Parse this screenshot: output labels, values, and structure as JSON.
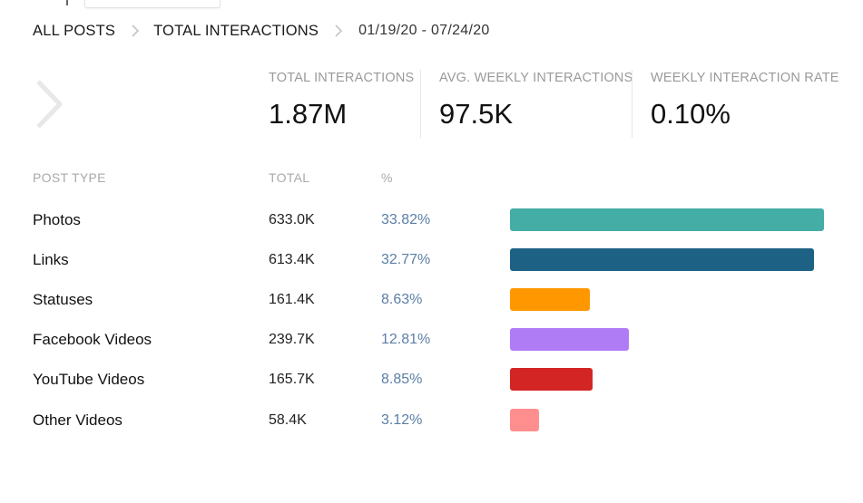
{
  "breadcrumb": {
    "all_posts": "ALL POSTS",
    "total_interactions": "TOTAL INTERACTIONS",
    "date_range": "01/19/20 - 07/24/20"
  },
  "stats": [
    {
      "label": "TOTAL INTERACTIONS",
      "value": "1.87M"
    },
    {
      "label": "AVG. WEEKLY INTERACTIONS",
      "value": "97.5K"
    },
    {
      "label": "WEEKLY INTERACTION RATE",
      "value": "0.10%"
    }
  ],
  "colors": {
    "percent_text": "#5b7fa6",
    "chevron": "#e8e8e8",
    "crumb_sep": "#c4c4c4"
  },
  "chart_data": {
    "type": "bar",
    "orientation": "horizontal",
    "title": "",
    "columns": {
      "type": "POST TYPE",
      "total": "TOTAL",
      "percent": "%"
    },
    "categories": [
      "Photos",
      "Links",
      "Statuses",
      "Facebook Videos",
      "YouTube Videos",
      "Other Videos"
    ],
    "totals": [
      "633.0K",
      "613.4K",
      "161.4K",
      "239.7K",
      "165.7K",
      "58.4K"
    ],
    "percent_labels": [
      "33.82%",
      "32.77%",
      "8.63%",
      "12.81%",
      "8.85%",
      "3.12%"
    ],
    "values": [
      633.0,
      613.4,
      161.4,
      239.7,
      165.7,
      58.4
    ],
    "unit": "K",
    "xlim": [
      0,
      633.0
    ],
    "colors": [
      "#43ada6",
      "#1d6285",
      "#ff9800",
      "#b07cf5",
      "#d42525",
      "#ff8f8f"
    ]
  }
}
